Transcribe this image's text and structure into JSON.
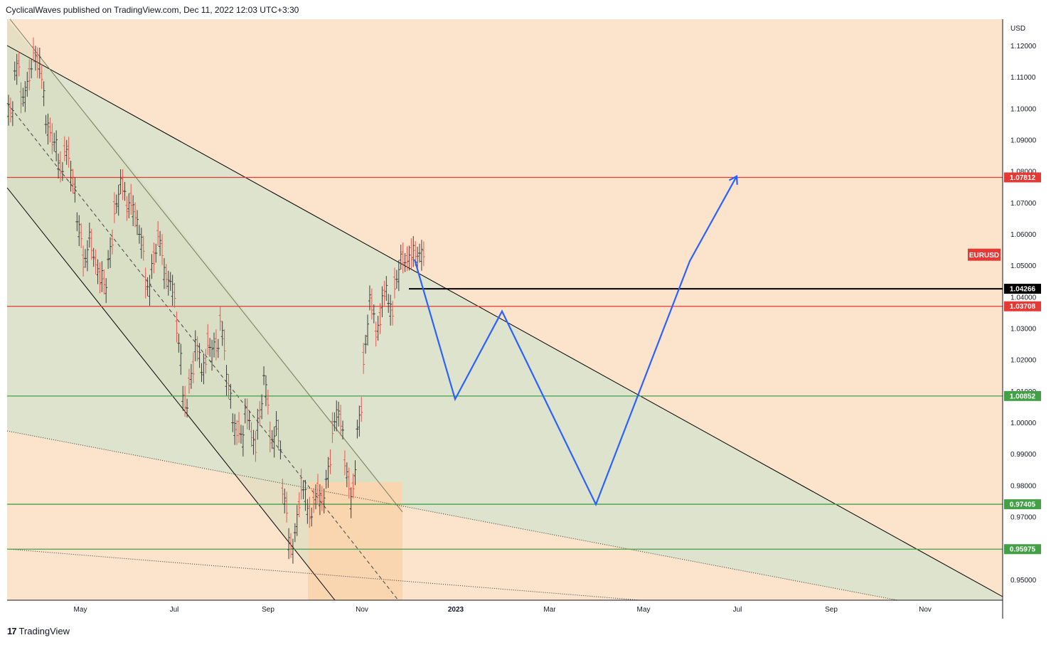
{
  "header": {
    "attribution": "CyclicalWaves published on TradingView.com, Dec 11, 2022 12:03 UTC+3:30"
  },
  "footer": {
    "logo_mark": "17",
    "brand": "TradingView"
  },
  "colors": {
    "background": "#fbe3cc",
    "channel_fill": "#dde3cc",
    "box_fill": "#f9d5b0",
    "resistance": "#e53935",
    "support": "#43a047",
    "projection": "#2962ff",
    "candle_up": "#3c3c3c",
    "candle_down": "#ef5350"
  },
  "chart_data": {
    "type": "ohlc",
    "symbol": "EURUSD",
    "currency": "USD",
    "x_ticks": [
      "May",
      "Jul",
      "Sep",
      "Nov",
      "2023",
      "Mar",
      "May",
      "Jul",
      "Sep",
      "Nov"
    ],
    "y_ticks": [
      "1.12000",
      "1.11000",
      "1.10000",
      "1.09000",
      "1.08000",
      "1.07000",
      "1.06000",
      "1.05000",
      "1.04000",
      "1.03000",
      "1.02000",
      "1.01000",
      "1.00000",
      "0.99000",
      "0.98000",
      "0.97000",
      "0.95000"
    ],
    "ylim": [
      0.9435,
      1.1285
    ],
    "horizontal_levels": [
      {
        "price": 1.07812,
        "label": "1.07812",
        "role": "resistance"
      },
      {
        "price": 1.04266,
        "label": "1.04266",
        "role": "current"
      },
      {
        "price": 1.03708,
        "label": "1.03708",
        "role": "resistance"
      },
      {
        "price": 1.00852,
        "label": "1.00852",
        "role": "support"
      },
      {
        "price": 0.97405,
        "label": "0.97405",
        "role": "support"
      },
      {
        "price": 0.95975,
        "label": "0.95975",
        "role": "support"
      }
    ],
    "symbol_price": 1.0534,
    "ohlc_path": [
      [
        1.1,
        1.098
      ],
      [
        1.112,
        1.115
      ],
      [
        1.103,
        1.105
      ],
      [
        1.108,
        1.115
      ],
      [
        1.1185,
        1.112
      ],
      [
        1.115,
        1.1
      ],
      [
        1.095,
        1.092
      ],
      [
        1.09,
        1.088
      ],
      [
        1.082,
        1.079
      ],
      [
        1.087,
        1.085
      ],
      [
        1.079,
        1.072
      ],
      [
        1.064,
        1.057
      ],
      [
        1.051,
        1.055
      ],
      [
        1.06,
        1.049
      ],
      [
        1.051,
        1.043
      ],
      [
        1.047,
        1.04
      ],
      [
        1.052,
        1.06
      ],
      [
        1.068,
        1.073
      ],
      [
        1.077,
        1.072
      ],
      [
        1.068,
        1.072
      ],
      [
        1.068,
        1.062
      ],
      [
        1.06,
        1.053
      ],
      [
        1.044,
        1.042
      ],
      [
        1.05,
        1.056
      ],
      [
        1.06,
        1.052
      ],
      [
        1.048,
        1.043
      ],
      [
        1.045,
        1.038
      ],
      [
        1.03,
        1.016
      ],
      [
        1.008,
        1.003
      ],
      [
        1.013,
        1.019
      ],
      [
        1.025,
        1.02
      ],
      [
        1.016,
        1.021
      ],
      [
        1.026,
        1.02
      ],
      [
        1.025,
        1.023
      ],
      [
        1.033,
        1.02
      ],
      [
        1.014,
        1.006
      ],
      [
        1.0,
        0.995
      ],
      [
        0.998,
        0.993
      ],
      [
        1.004,
        0.999
      ],
      [
        0.996,
        0.99
      ],
      [
        1.0,
        1.008
      ],
      [
        1.015,
        1.002
      ],
      [
        0.995,
        0.994
      ],
      [
        1.0,
        0.987
      ],
      [
        0.978,
        0.97
      ],
      [
        0.962,
        0.958
      ],
      [
        0.965,
        0.978
      ],
      [
        0.98,
        0.976
      ],
      [
        0.972,
        0.969
      ],
      [
        0.975,
        0.98
      ],
      [
        0.976,
        0.975
      ],
      [
        0.982,
        0.99
      ],
      [
        0.998,
        1.005
      ],
      [
        1.003,
        0.995
      ],
      [
        0.987,
        0.977
      ],
      [
        0.975,
        0.989
      ],
      [
        0.998,
        1.007
      ],
      [
        1.02,
        1.035
      ],
      [
        1.04,
        1.032
      ],
      [
        1.028,
        1.035
      ],
      [
        1.039,
        1.045
      ],
      [
        1.038,
        1.033
      ],
      [
        1.044,
        1.049
      ],
      [
        1.053,
        1.05
      ],
      [
        1.052,
        1.054
      ],
      [
        1.055,
        1.051
      ],
      [
        1.054,
        1.0534
      ]
    ],
    "projection_path": [
      [
        "Nov 2022",
        1.052
      ],
      [
        "Jan 2023",
        1.0075
      ],
      [
        "Feb 2023",
        1.0355
      ],
      [
        "Apr 2023",
        0.974
      ],
      [
        "Jun 2023",
        1.0515
      ],
      [
        "Jul 2023",
        1.0785
      ]
    ]
  }
}
